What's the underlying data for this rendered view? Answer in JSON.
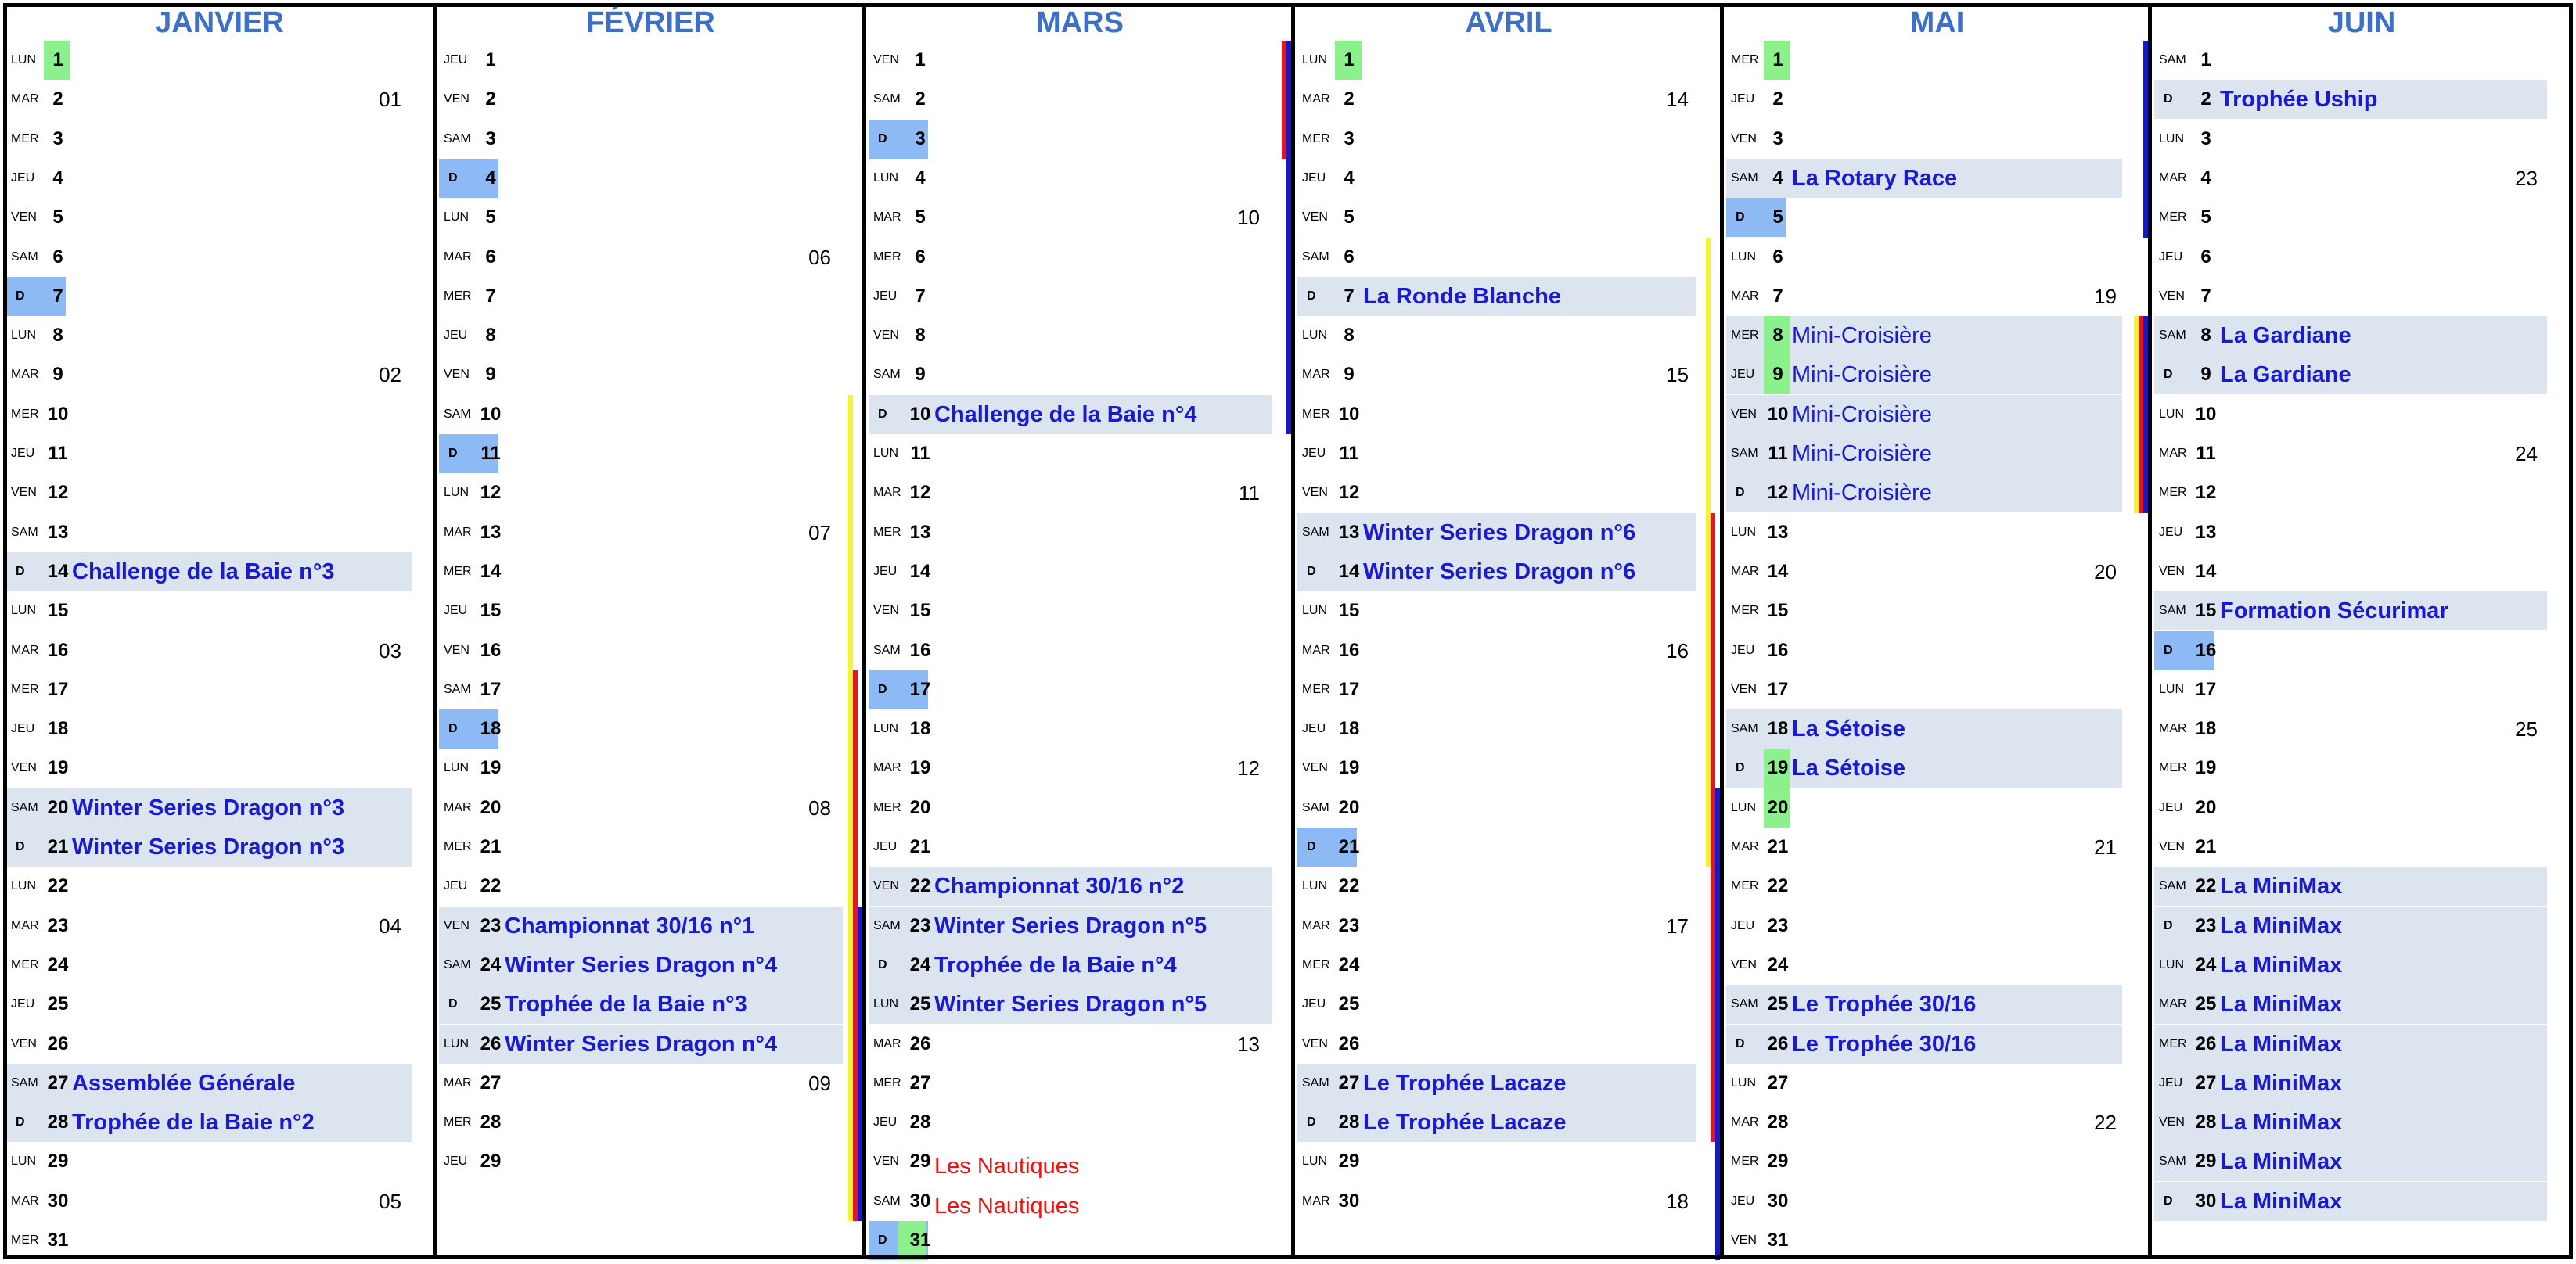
{
  "colors": {
    "month_title": "#3d71c7",
    "event_text": "#1a1ad0",
    "event_background": "#dbe4ef",
    "sunday_highlight": "#8db9f4",
    "green_highlight": "#8cf08c",
    "alt_text": "#ee1111",
    "bar_red": "#e8141e",
    "bar_blue": "#1818c8",
    "bar_yellow": "#f4f432"
  },
  "months": [
    {
      "name": "JANVIER",
      "days": [
        {
          "d": "LUN",
          "n": "1",
          "hl": "green"
        },
        {
          "d": "MAR",
          "n": "2",
          "wk": "01"
        },
        {
          "d": "MER",
          "n": "3"
        },
        {
          "d": "JEU",
          "n": "4"
        },
        {
          "d": "VEN",
          "n": "5"
        },
        {
          "d": "SAM",
          "n": "6"
        },
        {
          "d": "D",
          "n": "7",
          "hl": "blue"
        },
        {
          "d": "LUN",
          "n": "8"
        },
        {
          "d": "MAR",
          "n": "9",
          "wk": "02"
        },
        {
          "d": "MER",
          "n": "10"
        },
        {
          "d": "JEU",
          "n": "11"
        },
        {
          "d": "VEN",
          "n": "12"
        },
        {
          "d": "SAM",
          "n": "13"
        },
        {
          "d": "D",
          "n": "14",
          "ev": "Challenge de la Baie n°3"
        },
        {
          "d": "LUN",
          "n": "15"
        },
        {
          "d": "MAR",
          "n": "16",
          "wk": "03"
        },
        {
          "d": "MER",
          "n": "17"
        },
        {
          "d": "JEU",
          "n": "18"
        },
        {
          "d": "VEN",
          "n": "19"
        },
        {
          "d": "SAM",
          "n": "20",
          "ev": "Winter Series Dragon n°3"
        },
        {
          "d": "D",
          "n": "21",
          "ev": "Winter Series Dragon n°3"
        },
        {
          "d": "LUN",
          "n": "22"
        },
        {
          "d": "MAR",
          "n": "23",
          "wk": "04"
        },
        {
          "d": "MER",
          "n": "24"
        },
        {
          "d": "JEU",
          "n": "25"
        },
        {
          "d": "VEN",
          "n": "26"
        },
        {
          "d": "SAM",
          "n": "27",
          "ev": "Assemblée Générale"
        },
        {
          "d": "D",
          "n": "28",
          "ev": "Trophée de la Baie n°2"
        },
        {
          "d": "LUN",
          "n": "29"
        },
        {
          "d": "MAR",
          "n": "30",
          "wk": "05"
        },
        {
          "d": "MER",
          "n": "31"
        }
      ]
    },
    {
      "name": "FÉVRIER",
      "days": [
        {
          "d": "JEU",
          "n": "1"
        },
        {
          "d": "VEN",
          "n": "2"
        },
        {
          "d": "SAM",
          "n": "3"
        },
        {
          "d": "D",
          "n": "4",
          "hl": "blue"
        },
        {
          "d": "LUN",
          "n": "5"
        },
        {
          "d": "MAR",
          "n": "6",
          "wk": "06"
        },
        {
          "d": "MER",
          "n": "7"
        },
        {
          "d": "JEU",
          "n": "8"
        },
        {
          "d": "VEN",
          "n": "9"
        },
        {
          "d": "SAM",
          "n": "10"
        },
        {
          "d": "D",
          "n": "11",
          "hl": "blue"
        },
        {
          "d": "LUN",
          "n": "12"
        },
        {
          "d": "MAR",
          "n": "13",
          "wk": "07"
        },
        {
          "d": "MER",
          "n": "14"
        },
        {
          "d": "JEU",
          "n": "15"
        },
        {
          "d": "VEN",
          "n": "16"
        },
        {
          "d": "SAM",
          "n": "17"
        },
        {
          "d": "D",
          "n": "18",
          "hl": "blue"
        },
        {
          "d": "LUN",
          "n": "19"
        },
        {
          "d": "MAR",
          "n": "20",
          "wk": "08"
        },
        {
          "d": "MER",
          "n": "21"
        },
        {
          "d": "JEU",
          "n": "22"
        },
        {
          "d": "VEN",
          "n": "23",
          "ev": "Championnat 30/16 n°1"
        },
        {
          "d": "SAM",
          "n": "24",
          "ev": "Winter Series Dragon n°4"
        },
        {
          "d": "D",
          "n": "25",
          "ev": "Trophée de la Baie n°3"
        },
        {
          "d": "LUN",
          "n": "26",
          "ev": "Winter Series Dragon n°4"
        },
        {
          "d": "MAR",
          "n": "27",
          "wk": "09"
        },
        {
          "d": "MER",
          "n": "28"
        },
        {
          "d": "JEU",
          "n": "29"
        }
      ]
    },
    {
      "name": "MARS",
      "days": [
        {
          "d": "VEN",
          "n": "1"
        },
        {
          "d": "SAM",
          "n": "2"
        },
        {
          "d": "D",
          "n": "3",
          "hl": "blue"
        },
        {
          "d": "LUN",
          "n": "4"
        },
        {
          "d": "MAR",
          "n": "5",
          "wk": "10"
        },
        {
          "d": "MER",
          "n": "6"
        },
        {
          "d": "JEU",
          "n": "7"
        },
        {
          "d": "VEN",
          "n": "8"
        },
        {
          "d": "SAM",
          "n": "9"
        },
        {
          "d": "D",
          "n": "10",
          "ev": "Challenge de la Baie n°4"
        },
        {
          "d": "LUN",
          "n": "11"
        },
        {
          "d": "MAR",
          "n": "12",
          "wk": "11"
        },
        {
          "d": "MER",
          "n": "13"
        },
        {
          "d": "JEU",
          "n": "14"
        },
        {
          "d": "VEN",
          "n": "15"
        },
        {
          "d": "SAM",
          "n": "16"
        },
        {
          "d": "D",
          "n": "17",
          "hl": "blue"
        },
        {
          "d": "LUN",
          "n": "18"
        },
        {
          "d": "MAR",
          "n": "19",
          "wk": "12"
        },
        {
          "d": "MER",
          "n": "20"
        },
        {
          "d": "JEU",
          "n": "21"
        },
        {
          "d": "VEN",
          "n": "22",
          "ev": "Championnat 30/16 n°2"
        },
        {
          "d": "SAM",
          "n": "23",
          "ev": "Winter Series Dragon n°5"
        },
        {
          "d": "D",
          "n": "24",
          "ev": "Trophée de la Baie n°4"
        },
        {
          "d": "LUN",
          "n": "25",
          "ev": "Winter Series Dragon n°5"
        },
        {
          "d": "MAR",
          "n": "26",
          "wk": "13"
        },
        {
          "d": "MER",
          "n": "27"
        },
        {
          "d": "JEU",
          "n": "28"
        },
        {
          "d": "VEN",
          "n": "29",
          "red": "Les Nautiques"
        },
        {
          "d": "SAM",
          "n": "30",
          "red": "Les Nautiques"
        },
        {
          "d": "D",
          "n": "31",
          "hl": "blue-green"
        }
      ]
    },
    {
      "name": "AVRIL",
      "days": [
        {
          "d": "LUN",
          "n": "1",
          "hl": "green"
        },
        {
          "d": "MAR",
          "n": "2",
          "wk": "14"
        },
        {
          "d": "MER",
          "n": "3"
        },
        {
          "d": "JEU",
          "n": "4"
        },
        {
          "d": "VEN",
          "n": "5"
        },
        {
          "d": "SAM",
          "n": "6"
        },
        {
          "d": "D",
          "n": "7",
          "ev": "La Ronde Blanche"
        },
        {
          "d": "LUN",
          "n": "8"
        },
        {
          "d": "MAR",
          "n": "9",
          "wk": "15"
        },
        {
          "d": "MER",
          "n": "10"
        },
        {
          "d": "JEU",
          "n": "11"
        },
        {
          "d": "VEN",
          "n": "12"
        },
        {
          "d": "SAM",
          "n": "13",
          "ev": "Winter Series Dragon n°6"
        },
        {
          "d": "D",
          "n": "14",
          "ev": "Winter Series Dragon n°6"
        },
        {
          "d": "LUN",
          "n": "15"
        },
        {
          "d": "MAR",
          "n": "16",
          "wk": "16"
        },
        {
          "d": "MER",
          "n": "17"
        },
        {
          "d": "JEU",
          "n": "18"
        },
        {
          "d": "VEN",
          "n": "19"
        },
        {
          "d": "SAM",
          "n": "20"
        },
        {
          "d": "D",
          "n": "21",
          "hl": "blue"
        },
        {
          "d": "LUN",
          "n": "22"
        },
        {
          "d": "MAR",
          "n": "23",
          "wk": "17"
        },
        {
          "d": "MER",
          "n": "24"
        },
        {
          "d": "JEU",
          "n": "25"
        },
        {
          "d": "VEN",
          "n": "26"
        },
        {
          "d": "SAM",
          "n": "27",
          "ev": "Le Trophée Lacaze"
        },
        {
          "d": "D",
          "n": "28",
          "ev": "Le Trophée Lacaze"
        },
        {
          "d": "LUN",
          "n": "29"
        },
        {
          "d": "MAR",
          "n": "30",
          "wk": "18"
        }
      ]
    },
    {
      "name": "MAI",
      "days": [
        {
          "d": "MER",
          "n": "1",
          "hl": "green"
        },
        {
          "d": "JEU",
          "n": "2"
        },
        {
          "d": "VEN",
          "n": "3"
        },
        {
          "d": "SAM",
          "n": "4",
          "ev": "La Rotary Race"
        },
        {
          "d": "D",
          "n": "5",
          "hl": "blue"
        },
        {
          "d": "LUN",
          "n": "6"
        },
        {
          "d": "MAR",
          "n": "7",
          "wk": "19"
        },
        {
          "d": "MER",
          "n": "8",
          "hl": "green",
          "ev": "Mini-Croisière",
          "light": true
        },
        {
          "d": "JEU",
          "n": "9",
          "hl": "green",
          "ev": "Mini-Croisière",
          "light": true
        },
        {
          "d": "VEN",
          "n": "10",
          "ev": "Mini-Croisière",
          "light": true
        },
        {
          "d": "SAM",
          "n": "11",
          "ev": "Mini-Croisière",
          "light": true
        },
        {
          "d": "D",
          "n": "12",
          "ev": "Mini-Croisière",
          "light": true
        },
        {
          "d": "LUN",
          "n": "13"
        },
        {
          "d": "MAR",
          "n": "14",
          "wk": "20"
        },
        {
          "d": "MER",
          "n": "15"
        },
        {
          "d": "JEU",
          "n": "16"
        },
        {
          "d": "VEN",
          "n": "17"
        },
        {
          "d": "SAM",
          "n": "18",
          "ev": "La Sétoise"
        },
        {
          "d": "D",
          "n": "19",
          "hl": "green",
          "ev": "La Sétoise"
        },
        {
          "d": "LUN",
          "n": "20",
          "hl": "green"
        },
        {
          "d": "MAR",
          "n": "21",
          "wk": "21"
        },
        {
          "d": "MER",
          "n": "22"
        },
        {
          "d": "JEU",
          "n": "23"
        },
        {
          "d": "VEN",
          "n": "24"
        },
        {
          "d": "SAM",
          "n": "25",
          "ev": "Le Trophée 30/16"
        },
        {
          "d": "D",
          "n": "26",
          "ev": "Le Trophée 30/16"
        },
        {
          "d": "LUN",
          "n": "27"
        },
        {
          "d": "MAR",
          "n": "28",
          "wk": "22"
        },
        {
          "d": "MER",
          "n": "29"
        },
        {
          "d": "JEU",
          "n": "30"
        },
        {
          "d": "VEN",
          "n": "31"
        }
      ]
    },
    {
      "name": "JUIN",
      "days": [
        {
          "d": "SAM",
          "n": "1"
        },
        {
          "d": "D",
          "n": "2",
          "ev": "Trophée Uship"
        },
        {
          "d": "LUN",
          "n": "3"
        },
        {
          "d": "MAR",
          "n": "4",
          "wk": "23"
        },
        {
          "d": "MER",
          "n": "5"
        },
        {
          "d": "JEU",
          "n": "6"
        },
        {
          "d": "VEN",
          "n": "7"
        },
        {
          "d": "SAM",
          "n": "8",
          "ev": "La Gardiane"
        },
        {
          "d": "D",
          "n": "9",
          "ev": "La Gardiane"
        },
        {
          "d": "LUN",
          "n": "10"
        },
        {
          "d": "MAR",
          "n": "11",
          "wk": "24"
        },
        {
          "d": "MER",
          "n": "12"
        },
        {
          "d": "JEU",
          "n": "13"
        },
        {
          "d": "VEN",
          "n": "14"
        },
        {
          "d": "SAM",
          "n": "15",
          "ev": "Formation Sécurimar"
        },
        {
          "d": "D",
          "n": "16",
          "hl": "blue"
        },
        {
          "d": "LUN",
          "n": "17"
        },
        {
          "d": "MAR",
          "n": "18",
          "wk": "25"
        },
        {
          "d": "MER",
          "n": "19"
        },
        {
          "d": "JEU",
          "n": "20"
        },
        {
          "d": "VEN",
          "n": "21"
        },
        {
          "d": "SAM",
          "n": "22",
          "ev": "La MiniMax"
        },
        {
          "d": "D",
          "n": "23",
          "ev": "La MiniMax"
        },
        {
          "d": "LUN",
          "n": "24",
          "ev": "La MiniMax"
        },
        {
          "d": "MAR",
          "n": "25",
          "ev": "La MiniMax"
        },
        {
          "d": "MER",
          "n": "26",
          "ev": "La MiniMax"
        },
        {
          "d": "JEU",
          "n": "27",
          "ev": "La MiniMax"
        },
        {
          "d": "VEN",
          "n": "28",
          "ev": "La MiniMax"
        },
        {
          "d": "SAM",
          "n": "29",
          "ev": "La MiniMax"
        },
        {
          "d": "D",
          "n": "30",
          "ev": "La MiniMax"
        }
      ]
    }
  ],
  "span_bars": [
    {
      "month": 1,
      "from": 10,
      "to": 30,
      "color": "yellow"
    },
    {
      "month": 1,
      "from": 17,
      "to": 30,
      "color": "red"
    },
    {
      "month": 1,
      "from": 23,
      "to": 30,
      "color": "blue"
    },
    {
      "month": 2,
      "from": 1,
      "to": 3,
      "color": "red"
    },
    {
      "month": 2,
      "from": 1,
      "to": 10,
      "color": "blue"
    },
    {
      "month": 3,
      "from": 6,
      "to": 21,
      "color": "yellow"
    },
    {
      "month": 3,
      "from": 13,
      "to": 28,
      "color": "red"
    },
    {
      "month": 3,
      "from": 20,
      "to": 31,
      "color": "blue"
    },
    {
      "month": 4,
      "from": 1,
      "to": 5,
      "color": "blue"
    },
    {
      "month": 4,
      "from": 8,
      "to": 12,
      "color": "red"
    },
    {
      "month": 4,
      "from": 8,
      "to": 12,
      "color": "yellow"
    },
    {
      "month": 4,
      "from": 8,
      "to": 12,
      "color": "blue"
    }
  ]
}
